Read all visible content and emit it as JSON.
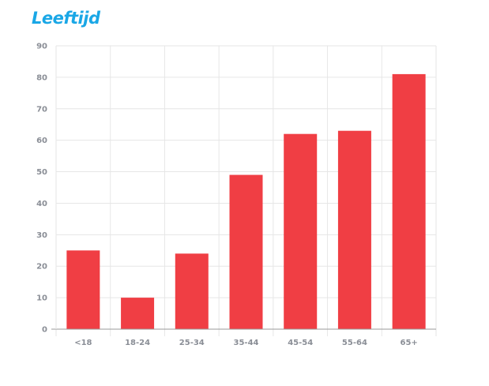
{
  "chart_data": {
    "type": "bar",
    "title": "Leeftijd",
    "categories": [
      "<18",
      "18-24",
      "25-34",
      "35-44",
      "45-54",
      "55-64",
      "65+"
    ],
    "values": [
      25,
      10,
      24,
      49,
      62,
      63,
      81
    ],
    "y_ticks": [
      "0",
      "10",
      "20",
      "30",
      "40",
      "50",
      "60",
      "70",
      "80",
      "90"
    ],
    "ylim": [
      0,
      90
    ],
    "xlabel": "",
    "ylabel": "",
    "grid": true,
    "colors": {
      "bar": "#f03e44",
      "title": "#1aa7e6",
      "grid": "#e6e6e6",
      "axis": "#9a9a9a"
    }
  }
}
